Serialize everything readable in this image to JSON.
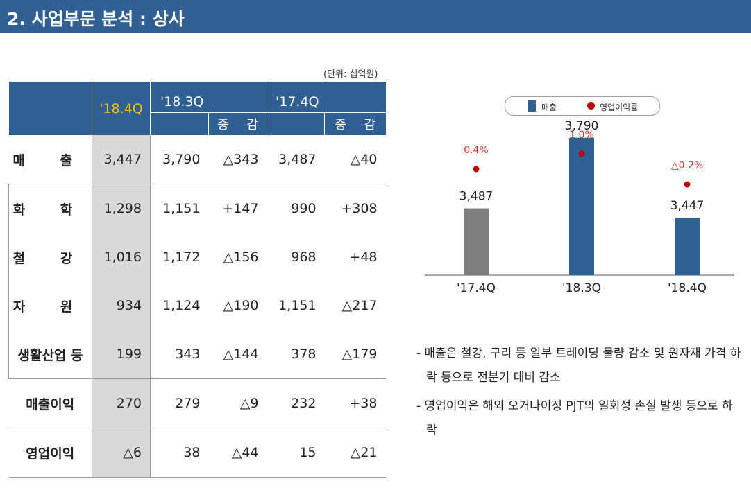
{
  "header": {
    "title": "2. 사업부문 분석 :  상사"
  },
  "unit_note": "(단위: 십억원)",
  "table": {
    "headers": {
      "q1": "'18.4Q",
      "q2": "'18.3Q",
      "q3": "'17.4Q",
      "diff1": "증 감",
      "diff2": "증 감"
    },
    "rows": [
      {
        "label": "매 출",
        "v": [
          "3,447",
          "3,790",
          "△343",
          "3,487",
          "△40"
        ]
      },
      {
        "label": "화 학",
        "v": [
          "1,298",
          "1,151",
          "+147",
          "990",
          "+308"
        ]
      },
      {
        "label": "철 강",
        "v": [
          "1,016",
          "1,172",
          "△156",
          "968",
          "+48"
        ]
      },
      {
        "label": "자 원",
        "v": [
          "934",
          "1,124",
          "△190",
          "1,151",
          "△217"
        ]
      },
      {
        "label": "생활산업 등",
        "v": [
          "199",
          "343",
          "△144",
          "378",
          "△179"
        ]
      },
      {
        "label": "매출이익",
        "v": [
          "270",
          "279",
          "△9",
          "232",
          "+38"
        ]
      },
      {
        "label": "영업이익",
        "v": [
          "△6",
          "38",
          "△44",
          "15",
          "△21"
        ]
      }
    ]
  },
  "legend": {
    "sales": "매출",
    "margin": "영업이익률"
  },
  "chart_data": {
    "type": "bar",
    "categories": [
      "'17.4Q",
      "'18.3Q",
      "'18.4Q"
    ],
    "series": [
      {
        "name": "매출",
        "values": [
          3487,
          3790,
          3447
        ],
        "labels": [
          "3,487",
          "3,790",
          "3,447"
        ]
      },
      {
        "name": "영업이익률",
        "values": [
          0.4,
          1.0,
          -0.2
        ],
        "labels": [
          "0.4%",
          "1.0%",
          "△0.2%"
        ]
      }
    ],
    "colors": {
      "bar_past": "#7f7f7f",
      "bar": "#2f5f93",
      "dot": "#c00000",
      "dot_label": "#e03030"
    }
  },
  "notes": [
    "- 매출은 철강, 구리 등 일부 트레이딩 물량 감소 및 원자재 가격 하락 등으로 전분기 대비 감소",
    "- 영업이익은 해외 오거나이징 PJT의 일회성 손실 발생 등으로 하락"
  ]
}
